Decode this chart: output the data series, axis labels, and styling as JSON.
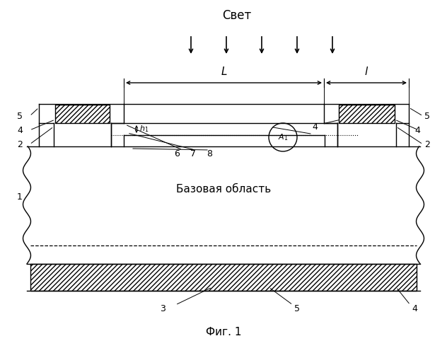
{
  "title": "Фиг. 1",
  "light_label": "Свет",
  "base_label": "Базовая область",
  "bg_color": "#ffffff",
  "line_color": "#000000"
}
